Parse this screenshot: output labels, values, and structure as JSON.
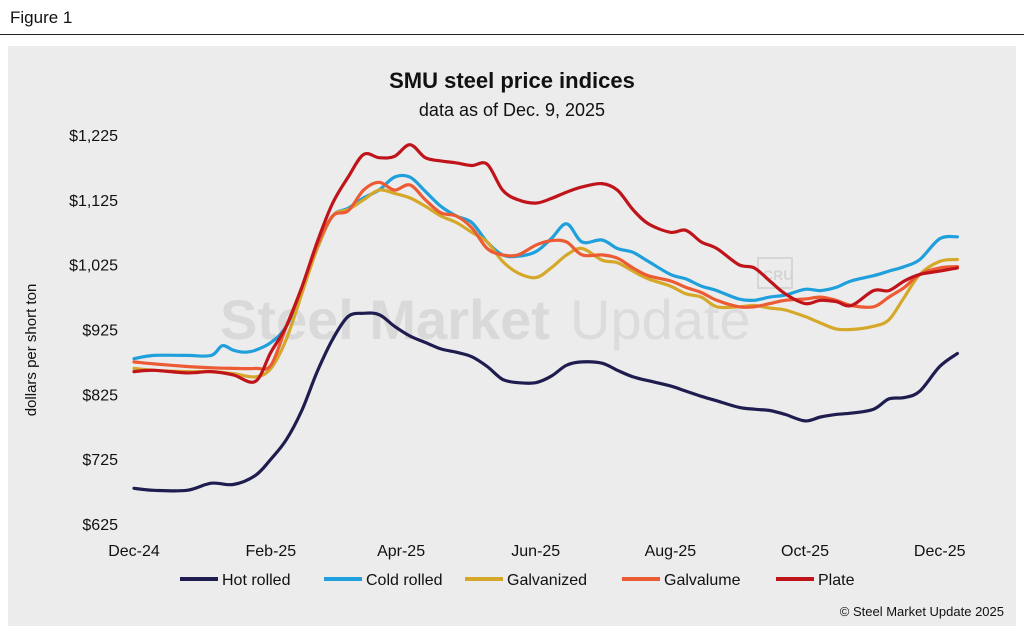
{
  "figure_label": "Figure 1",
  "watermark": {
    "brand_bold": "Steel Market",
    "brand_light": "Update",
    "logo": "CRU"
  },
  "credit": "© Steel Market Update 2025",
  "colors": {
    "hot_rolled": "#1f1d4f",
    "cold_rolled": "#1fa0dc",
    "galvanized": "#d6a82a",
    "galvalume": "#ec5b33",
    "plate": "#c0141b"
  },
  "chart_data": {
    "type": "line",
    "title": "SMU steel price indices",
    "subtitle": "data as of Dec. 9, 2025",
    "xlabel": "",
    "ylabel": "dollars per short ton",
    "ylim": [
      625,
      1225
    ],
    "yticks": [
      625,
      725,
      825,
      925,
      1025,
      1125,
      1225
    ],
    "ytick_labels": [
      "$625",
      "$725",
      "$825",
      "$925",
      "$1,025",
      "$1,125",
      "$1,225"
    ],
    "xlim": [
      "2024-12-01",
      "2025-12-12"
    ],
    "xticks": [
      "2024-12-01",
      "2025-02-01",
      "2025-04-01",
      "2025-06-01",
      "2025-08-01",
      "2025-10-01",
      "2025-12-01"
    ],
    "xtick_labels": [
      "Dec-24",
      "Feb-25",
      "Apr-25",
      "Jun-25",
      "Aug-25",
      "Oct-25",
      "Dec-25"
    ],
    "grid": false,
    "legend_position": "bottom",
    "series": [
      {
        "name": "Hot rolled",
        "color_key": "hot_rolled",
        "x": [
          "2024-12-01",
          "2024-12-10",
          "2024-12-25",
          "2025-01-05",
          "2025-01-15",
          "2025-01-25",
          "2025-02-01",
          "2025-02-08",
          "2025-02-15",
          "2025-02-22",
          "2025-03-01",
          "2025-03-08",
          "2025-03-15",
          "2025-03-22",
          "2025-03-29",
          "2025-04-05",
          "2025-04-12",
          "2025-04-19",
          "2025-04-26",
          "2025-05-03",
          "2025-05-10",
          "2025-05-17",
          "2025-05-24",
          "2025-06-01",
          "2025-06-08",
          "2025-06-15",
          "2025-06-22",
          "2025-07-01",
          "2025-07-08",
          "2025-07-15",
          "2025-07-22",
          "2025-08-01",
          "2025-08-08",
          "2025-08-15",
          "2025-08-22",
          "2025-09-01",
          "2025-09-08",
          "2025-09-15",
          "2025-09-22",
          "2025-10-01",
          "2025-10-08",
          "2025-10-15",
          "2025-10-22",
          "2025-11-01",
          "2025-11-08",
          "2025-11-15",
          "2025-11-22",
          "2025-12-01",
          "2025-12-09"
        ],
        "values": [
          680,
          677,
          677,
          688,
          686,
          700,
          725,
          755,
          800,
          860,
          910,
          945,
          950,
          948,
          930,
          915,
          905,
          895,
          890,
          883,
          868,
          848,
          843,
          843,
          853,
          870,
          875,
          873,
          862,
          852,
          846,
          838,
          830,
          822,
          815,
          805,
          802,
          800,
          794,
          784,
          790,
          794,
          796,
          802,
          818,
          820,
          830,
          868,
          888
        ]
      },
      {
        "name": "Cold rolled",
        "color_key": "cold_rolled",
        "x": [
          "2024-12-01",
          "2024-12-10",
          "2024-12-25",
          "2025-01-05",
          "2025-01-10",
          "2025-01-15",
          "2025-01-20",
          "2025-01-25",
          "2025-02-01",
          "2025-02-08",
          "2025-02-15",
          "2025-02-22",
          "2025-03-01",
          "2025-03-08",
          "2025-03-15",
          "2025-03-22",
          "2025-03-29",
          "2025-04-05",
          "2025-04-12",
          "2025-04-19",
          "2025-04-26",
          "2025-05-03",
          "2025-05-10",
          "2025-05-17",
          "2025-05-24",
          "2025-06-01",
          "2025-06-08",
          "2025-06-15",
          "2025-06-22",
          "2025-07-01",
          "2025-07-08",
          "2025-07-15",
          "2025-07-22",
          "2025-08-01",
          "2025-08-08",
          "2025-08-15",
          "2025-08-22",
          "2025-09-01",
          "2025-09-08",
          "2025-09-15",
          "2025-09-22",
          "2025-10-01",
          "2025-10-08",
          "2025-10-15",
          "2025-10-22",
          "2025-11-01",
          "2025-11-08",
          "2025-11-15",
          "2025-11-22",
          "2025-12-01",
          "2025-12-09"
        ],
        "values": [
          880,
          885,
          885,
          885,
          900,
          893,
          890,
          893,
          905,
          930,
          985,
          1050,
          1100,
          1112,
          1128,
          1140,
          1160,
          1160,
          1138,
          1115,
          1100,
          1090,
          1060,
          1040,
          1038,
          1045,
          1065,
          1088,
          1060,
          1063,
          1050,
          1044,
          1030,
          1010,
          1003,
          992,
          985,
          972,
          970,
          975,
          978,
          987,
          985,
          990,
          1000,
          1008,
          1015,
          1022,
          1033,
          1065,
          1068
        ]
      },
      {
        "name": "Galvanized",
        "color_key": "galvanized",
        "x": [
          "2024-12-01",
          "2024-12-10",
          "2024-12-25",
          "2025-01-05",
          "2025-01-15",
          "2025-01-25",
          "2025-02-01",
          "2025-02-08",
          "2025-02-15",
          "2025-02-22",
          "2025-03-01",
          "2025-03-08",
          "2025-03-15",
          "2025-03-22",
          "2025-03-29",
          "2025-04-05",
          "2025-04-12",
          "2025-04-19",
          "2025-04-26",
          "2025-05-03",
          "2025-05-10",
          "2025-05-17",
          "2025-05-24",
          "2025-06-01",
          "2025-06-08",
          "2025-06-15",
          "2025-06-22",
          "2025-07-01",
          "2025-07-08",
          "2025-07-15",
          "2025-07-22",
          "2025-08-01",
          "2025-08-08",
          "2025-08-15",
          "2025-08-22",
          "2025-09-01",
          "2025-09-08",
          "2025-09-15",
          "2025-09-22",
          "2025-10-01",
          "2025-10-08",
          "2025-10-15",
          "2025-10-22",
          "2025-11-01",
          "2025-11-08",
          "2025-11-15",
          "2025-11-22",
          "2025-12-01",
          "2025-12-09"
        ],
        "values": [
          865,
          862,
          860,
          860,
          857,
          852,
          865,
          910,
          980,
          1050,
          1100,
          1110,
          1125,
          1140,
          1135,
          1128,
          1115,
          1100,
          1090,
          1075,
          1060,
          1030,
          1012,
          1005,
          1020,
          1040,
          1050,
          1032,
          1028,
          1015,
          1003,
          992,
          980,
          975,
          960,
          960,
          962,
          958,
          955,
          945,
          935,
          926,
          925,
          930,
          940,
          975,
          1010,
          1030,
          1033
        ]
      },
      {
        "name": "Galvalume",
        "color_key": "galvalume",
        "x": [
          "2024-12-01",
          "2024-12-10",
          "2024-12-25",
          "2025-01-05",
          "2025-01-15",
          "2025-01-25",
          "2025-02-01",
          "2025-02-08",
          "2025-02-15",
          "2025-02-22",
          "2025-03-01",
          "2025-03-08",
          "2025-03-15",
          "2025-03-22",
          "2025-03-29",
          "2025-04-05",
          "2025-04-12",
          "2025-04-19",
          "2025-04-26",
          "2025-05-03",
          "2025-05-10",
          "2025-05-17",
          "2025-05-24",
          "2025-06-01",
          "2025-06-08",
          "2025-06-15",
          "2025-06-22",
          "2025-07-01",
          "2025-07-08",
          "2025-07-15",
          "2025-07-22",
          "2025-08-01",
          "2025-08-08",
          "2025-08-15",
          "2025-08-22",
          "2025-09-01",
          "2025-09-08",
          "2025-09-15",
          "2025-09-22",
          "2025-10-01",
          "2025-10-08",
          "2025-10-15",
          "2025-10-22",
          "2025-11-01",
          "2025-11-08",
          "2025-11-15",
          "2025-11-22",
          "2025-12-01",
          "2025-12-09"
        ],
        "values": [
          875,
          872,
          868,
          866,
          865,
          865,
          870,
          930,
          990,
          1055,
          1100,
          1108,
          1140,
          1152,
          1140,
          1148,
          1125,
          1105,
          1100,
          1082,
          1050,
          1040,
          1040,
          1055,
          1062,
          1060,
          1040,
          1040,
          1035,
          1020,
          1008,
          1000,
          990,
          982,
          970,
          960,
          960,
          965,
          970,
          972,
          975,
          970,
          962,
          960,
          975,
          990,
          1010,
          1020,
          1022
        ]
      },
      {
        "name": "Plate",
        "color_key": "plate",
        "x": [
          "2024-12-01",
          "2024-12-10",
          "2024-12-25",
          "2025-01-05",
          "2025-01-15",
          "2025-01-25",
          "2025-02-01",
          "2025-02-08",
          "2025-02-15",
          "2025-02-22",
          "2025-03-01",
          "2025-03-08",
          "2025-03-15",
          "2025-03-22",
          "2025-03-29",
          "2025-04-05",
          "2025-04-12",
          "2025-04-19",
          "2025-04-26",
          "2025-05-03",
          "2025-05-10",
          "2025-05-17",
          "2025-05-24",
          "2025-06-01",
          "2025-06-08",
          "2025-06-15",
          "2025-06-22",
          "2025-07-01",
          "2025-07-08",
          "2025-07-15",
          "2025-07-22",
          "2025-08-01",
          "2025-08-08",
          "2025-08-15",
          "2025-08-22",
          "2025-09-01",
          "2025-09-08",
          "2025-09-15",
          "2025-09-22",
          "2025-10-01",
          "2025-10-08",
          "2025-10-15",
          "2025-10-22",
          "2025-11-01",
          "2025-11-08",
          "2025-11-15",
          "2025-11-22",
          "2025-12-01",
          "2025-12-09"
        ],
        "values": [
          860,
          862,
          858,
          860,
          855,
          845,
          890,
          930,
          990,
          1060,
          1120,
          1160,
          1195,
          1190,
          1192,
          1210,
          1190,
          1185,
          1182,
          1178,
          1180,
          1140,
          1125,
          1120,
          1127,
          1137,
          1145,
          1150,
          1140,
          1110,
          1088,
          1075,
          1078,
          1060,
          1050,
          1025,
          1020,
          1000,
          980,
          965,
          970,
          968,
          962,
          985,
          985,
          1000,
          1010,
          1015,
          1020
        ]
      }
    ]
  }
}
